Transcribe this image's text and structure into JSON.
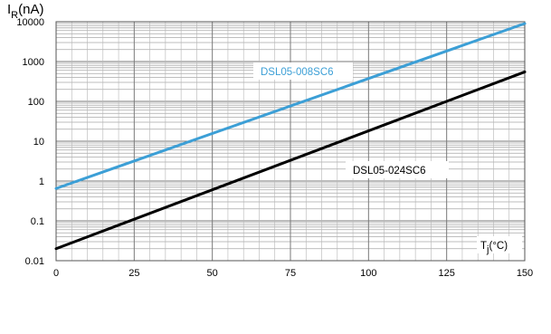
{
  "chart_data": {
    "type": "line",
    "title": "",
    "ylabel": {
      "main": "I",
      "sub": "R",
      "unit": "(nA)"
    },
    "xlabel": {
      "main": "T",
      "sub": "j",
      "unit": "(°C)"
    },
    "xlim": [
      0,
      150
    ],
    "ylim": [
      0.01,
      10000
    ],
    "yscale": "log",
    "grid": true,
    "x_ticks": [
      "0",
      "25",
      "50",
      "75",
      "100",
      "125",
      "150"
    ],
    "y_ticks": [
      "0.01",
      "0.1",
      "1",
      "10",
      "100",
      "1000",
      "10000"
    ],
    "series": [
      {
        "name": "DSL05-008SC6",
        "color": "#3c9fd6",
        "x": [
          0,
          150
        ],
        "y": [
          0.65,
          9000
        ]
      },
      {
        "name": "DSL05-024SC6",
        "color": "#000000",
        "x": [
          0,
          150
        ],
        "y": [
          0.02,
          550
        ]
      }
    ]
  }
}
